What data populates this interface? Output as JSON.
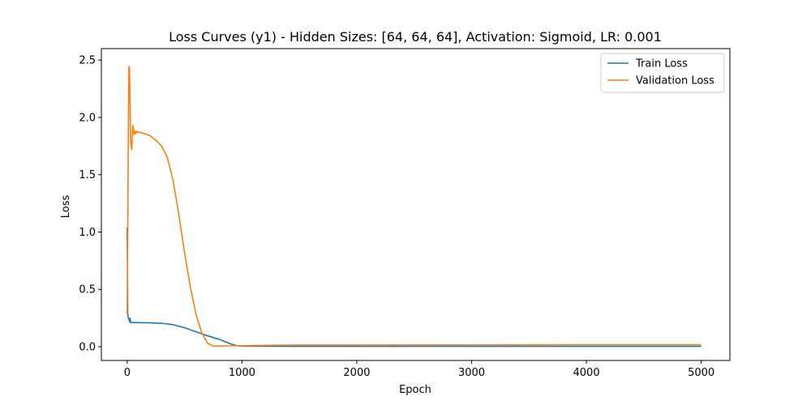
{
  "chart_data": {
    "type": "line",
    "title": "Loss Curves (y1) - Hidden Sizes: [64, 64, 64], Activation: Sigmoid, LR: 0.001",
    "xlabel": "Epoch",
    "ylabel": "Loss",
    "xlim": [
      -225,
      5250
    ],
    "ylim": [
      -0.12,
      2.6
    ],
    "xticks": [
      0,
      1000,
      2000,
      3000,
      4000,
      5000
    ],
    "yticks": [
      0.0,
      0.5,
      1.0,
      1.5,
      2.0,
      2.5
    ],
    "xtick_labels": [
      "0",
      "1000",
      "2000",
      "3000",
      "4000",
      "5000"
    ],
    "ytick_labels": [
      "0.0",
      "0.5",
      "1.0",
      "1.5",
      "2.0",
      "2.5"
    ],
    "grid": false,
    "legend_position": "top-right",
    "series": [
      {
        "name": "Train Loss",
        "color": "#1f77b4",
        "x": [
          0,
          5,
          10,
          15,
          20,
          25,
          30,
          40,
          60,
          100,
          200,
          300,
          400,
          500,
          600,
          700,
          800,
          850,
          900,
          950,
          1000,
          1200,
          1500,
          2000,
          3000,
          4000,
          5000
        ],
        "y": [
          1.04,
          0.28,
          0.25,
          0.24,
          0.22,
          0.25,
          0.21,
          0.212,
          0.21,
          0.21,
          0.208,
          0.204,
          0.192,
          0.165,
          0.13,
          0.095,
          0.065,
          0.045,
          0.025,
          0.01,
          0.005,
          0.004,
          0.003,
          0.003,
          0.003,
          0.003,
          0.003
        ]
      },
      {
        "name": "Validation Loss",
        "color": "#ff7f0e",
        "x": [
          0,
          5,
          10,
          15,
          20,
          25,
          30,
          35,
          40,
          45,
          50,
          55,
          60,
          65,
          70,
          75,
          80,
          85,
          90,
          100,
          150,
          200,
          250,
          300,
          350,
          400,
          450,
          500,
          550,
          600,
          650,
          700,
          750,
          800,
          850,
          900,
          950,
          1000,
          1100,
          1200,
          1500,
          2000,
          3000,
          4000,
          5000
        ],
        "y": [
          0.28,
          1.0,
          1.9,
          2.44,
          2.44,
          2.1,
          1.8,
          1.75,
          1.72,
          1.85,
          1.93,
          1.9,
          1.85,
          1.88,
          1.86,
          1.86,
          1.88,
          1.87,
          1.87,
          1.87,
          1.86,
          1.84,
          1.8,
          1.75,
          1.65,
          1.45,
          1.15,
          0.82,
          0.52,
          0.28,
          0.12,
          0.03,
          0.005,
          0.005,
          0.008,
          0.008,
          0.008,
          0.008,
          0.01,
          0.012,
          0.015,
          0.015,
          0.016,
          0.017,
          0.017
        ]
      }
    ]
  }
}
